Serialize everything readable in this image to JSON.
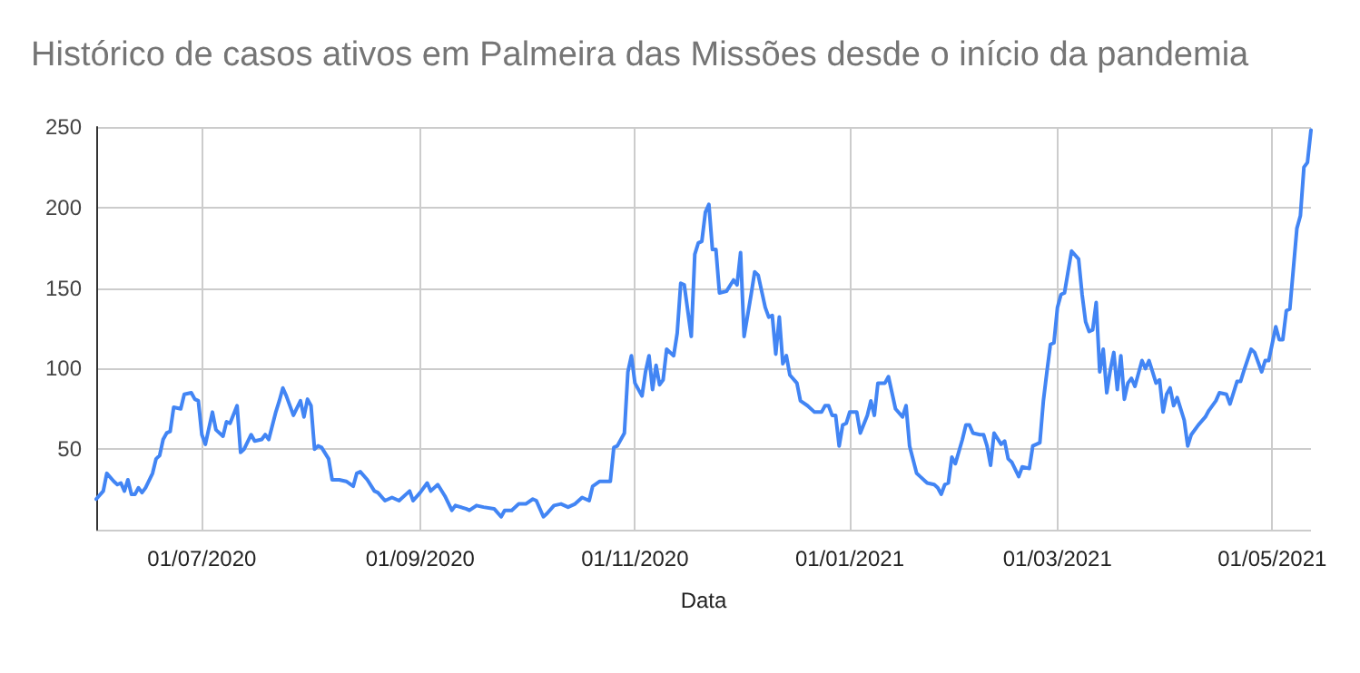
{
  "chart_data": {
    "type": "line",
    "title": "Histórico de casos ativos em Palmeira das Missões desde o início da pandemia",
    "xlabel": "Data",
    "xlim": [
      "2020-06-01",
      "2021-05-12"
    ],
    "xticks": [
      {
        "value": "2020-07-01",
        "label": "01/07/2020"
      },
      {
        "value": "2020-09-01",
        "label": "01/09/2020"
      },
      {
        "value": "2020-11-01",
        "label": "01/11/2020"
      },
      {
        "value": "2021-01-01",
        "label": "01/01/2021"
      },
      {
        "value": "2021-03-01",
        "label": "01/03/2021"
      },
      {
        "value": "2021-05-01",
        "label": "01/05/2021"
      }
    ],
    "ylim": [
      0,
      250
    ],
    "yticks": [
      {
        "value": 0,
        "label": null
      },
      50,
      100,
      150,
      200,
      250
    ],
    "grid": true,
    "marker": "none",
    "line_style": "solid",
    "x": [
      "2020-06-01",
      "2020-06-03",
      "2020-06-04",
      "2020-06-06",
      "2020-06-07",
      "2020-06-08",
      "2020-06-09",
      "2020-06-10",
      "2020-06-11",
      "2020-06-12",
      "2020-06-13",
      "2020-06-14",
      "2020-06-15",
      "2020-06-17",
      "2020-06-18",
      "2020-06-19",
      "2020-06-20",
      "2020-06-21",
      "2020-06-22",
      "2020-06-23",
      "2020-06-25",
      "2020-06-26",
      "2020-06-28",
      "2020-06-29",
      "2020-06-30",
      "2020-07-01",
      "2020-07-02",
      "2020-07-04",
      "2020-07-05",
      "2020-07-07",
      "2020-07-08",
      "2020-07-09",
      "2020-07-11",
      "2020-07-12",
      "2020-07-13",
      "2020-07-15",
      "2020-07-16",
      "2020-07-18",
      "2020-07-19",
      "2020-07-20",
      "2020-07-22",
      "2020-07-23",
      "2020-07-24",
      "2020-07-25",
      "2020-07-27",
      "2020-07-29",
      "2020-07-30",
      "2020-07-31",
      "2020-08-01",
      "2020-08-02",
      "2020-08-03",
      "2020-08-04",
      "2020-08-06",
      "2020-08-07",
      "2020-08-09",
      "2020-08-11",
      "2020-08-13",
      "2020-08-14",
      "2020-08-15",
      "2020-08-17",
      "2020-08-19",
      "2020-08-20",
      "2020-08-22",
      "2020-08-24",
      "2020-08-26",
      "2020-08-29",
      "2020-08-30",
      "2020-09-01",
      "2020-09-03",
      "2020-09-04",
      "2020-09-06",
      "2020-09-08",
      "2020-09-10",
      "2020-09-11",
      "2020-09-14",
      "2020-09-15",
      "2020-09-17",
      "2020-09-19",
      "2020-09-22",
      "2020-09-24",
      "2020-09-25",
      "2020-09-27",
      "2020-09-29",
      "2020-10-01",
      "2020-10-03",
      "2020-10-04",
      "2020-10-06",
      "2020-10-07",
      "2020-10-09",
      "2020-10-11",
      "2020-10-13",
      "2020-10-15",
      "2020-10-17",
      "2020-10-19",
      "2020-10-20",
      "2020-10-22",
      "2020-10-25",
      "2020-10-26",
      "2020-10-27",
      "2020-10-29",
      "2020-10-30",
      "2020-10-31",
      "2020-11-01",
      "2020-11-03",
      "2020-11-04",
      "2020-11-05",
      "2020-11-06",
      "2020-11-07",
      "2020-11-08",
      "2020-11-09",
      "2020-11-10",
      "2020-11-12",
      "2020-11-13",
      "2020-11-14",
      "2020-11-15",
      "2020-11-17",
      "2020-11-18",
      "2020-11-19",
      "2020-11-20",
      "2020-11-21",
      "2020-11-22",
      "2020-11-23",
      "2020-11-24",
      "2020-11-25",
      "2020-11-27",
      "2020-11-29",
      "2020-11-30",
      "2020-12-01",
      "2020-12-02",
      "2020-12-04",
      "2020-12-05",
      "2020-12-06",
      "2020-12-08",
      "2020-12-09",
      "2020-12-10",
      "2020-12-11",
      "2020-12-12",
      "2020-12-13",
      "2020-12-14",
      "2020-12-15",
      "2020-12-17",
      "2020-12-18",
      "2020-12-20",
      "2020-12-22",
      "2020-12-24",
      "2020-12-25",
      "2020-12-26",
      "2020-12-27",
      "2020-12-28",
      "2020-12-29",
      "2020-12-30",
      "2020-12-31",
      "2021-01-01",
      "2021-01-03",
      "2021-01-04",
      "2021-01-06",
      "2021-01-07",
      "2021-01-08",
      "2021-01-09",
      "2021-01-11",
      "2021-01-12",
      "2021-01-13",
      "2021-01-14",
      "2021-01-16",
      "2021-01-17",
      "2021-01-18",
      "2021-01-20",
      "2021-01-21",
      "2021-01-23",
      "2021-01-25",
      "2021-01-26",
      "2021-01-27",
      "2021-01-28",
      "2021-01-29",
      "2021-01-30",
      "2021-01-31",
      "2021-02-02",
      "2021-02-03",
      "2021-02-04",
      "2021-02-05",
      "2021-02-07",
      "2021-02-08",
      "2021-02-09",
      "2021-02-10",
      "2021-02-11",
      "2021-02-13",
      "2021-02-14",
      "2021-02-15",
      "2021-02-16",
      "2021-02-18",
      "2021-02-19",
      "2021-02-21",
      "2021-02-22",
      "2021-02-24",
      "2021-02-25",
      "2021-02-26",
      "2021-02-27",
      "2021-02-28",
      "2021-03-01",
      "2021-03-02",
      "2021-03-03",
      "2021-03-05",
      "2021-03-07",
      "2021-03-08",
      "2021-03-09",
      "2021-03-10",
      "2021-03-11",
      "2021-03-12",
      "2021-03-13",
      "2021-03-14",
      "2021-03-15",
      "2021-03-16",
      "2021-03-17",
      "2021-03-18",
      "2021-03-19",
      "2021-03-20",
      "2021-03-21",
      "2021-03-22",
      "2021-03-23",
      "2021-03-25",
      "2021-03-26",
      "2021-03-27",
      "2021-03-28",
      "2021-03-29",
      "2021-03-30",
      "2021-03-31",
      "2021-04-01",
      "2021-04-02",
      "2021-04-03",
      "2021-04-04",
      "2021-04-06",
      "2021-04-07",
      "2021-04-08",
      "2021-04-10",
      "2021-04-12",
      "2021-04-13",
      "2021-04-15",
      "2021-04-16",
      "2021-04-18",
      "2021-04-19",
      "2021-04-21",
      "2021-04-22",
      "2021-04-23",
      "2021-04-25",
      "2021-04-26",
      "2021-04-28",
      "2021-04-29",
      "2021-04-30",
      "2021-05-02",
      "2021-05-03",
      "2021-05-04",
      "2021-05-05",
      "2021-05-06",
      "2021-05-08",
      "2021-05-09",
      "2021-05-10",
      "2021-05-11",
      "2021-05-12"
    ],
    "series": [
      {
        "color": "#4285f4",
        "values": [
          19,
          24,
          35,
          30,
          28,
          29,
          24,
          31,
          22,
          22,
          26,
          23,
          26,
          35,
          44,
          46,
          56,
          60,
          61,
          76,
          75,
          84,
          85,
          81,
          80,
          59,
          53,
          73,
          62,
          58,
          67,
          66,
          77,
          48,
          50,
          59,
          55,
          56,
          59,
          56,
          73,
          80,
          88,
          83,
          71,
          80,
          70,
          81,
          77,
          50,
          52,
          51,
          44,
          31,
          31,
          30,
          27,
          35,
          36,
          31,
          24,
          23,
          18,
          20,
          18,
          24,
          18,
          23,
          29,
          24,
          28,
          21,
          12,
          15,
          13,
          12,
          15,
          14,
          13,
          8,
          12,
          12,
          16,
          16,
          19,
          18,
          8,
          10,
          15,
          16,
          14,
          16,
          20,
          18,
          27,
          30,
          30,
          51,
          52,
          60,
          98,
          108,
          91,
          83,
          98,
          108,
          87,
          102,
          90,
          93,
          112,
          108,
          122,
          153,
          152,
          120,
          171,
          178,
          179,
          197,
          202,
          174,
          174,
          147,
          148,
          155,
          152,
          172,
          120,
          146,
          160,
          158,
          138,
          132,
          133,
          109,
          132,
          103,
          108,
          96,
          91,
          80,
          77,
          73,
          73,
          77,
          77,
          71,
          71,
          52,
          65,
          66,
          73,
          73,
          60,
          71,
          80,
          71,
          91,
          91,
          95,
          85,
          75,
          70,
          77,
          52,
          35,
          33,
          29,
          28,
          26,
          22,
          28,
          29,
          45,
          41,
          56,
          65,
          65,
          60,
          59,
          59,
          52,
          40,
          60,
          53,
          55,
          44,
          42,
          33,
          39,
          38,
          52,
          54,
          80,
          98,
          115,
          116,
          138,
          146,
          147,
          173,
          168,
          146,
          129,
          123,
          124,
          141,
          98,
          112,
          85,
          99,
          110,
          87,
          108,
          81,
          91,
          94,
          89,
          105,
          100,
          105,
          98,
          91,
          93,
          73,
          84,
          88,
          77,
          82,
          68,
          52,
          59,
          65,
          70,
          74,
          80,
          85,
          84,
          78,
          92,
          92,
          99,
          112,
          110,
          98,
          105,
          105,
          126,
          118,
          118,
          136,
          137,
          187,
          195,
          225,
          228,
          248
        ]
      }
    ]
  }
}
